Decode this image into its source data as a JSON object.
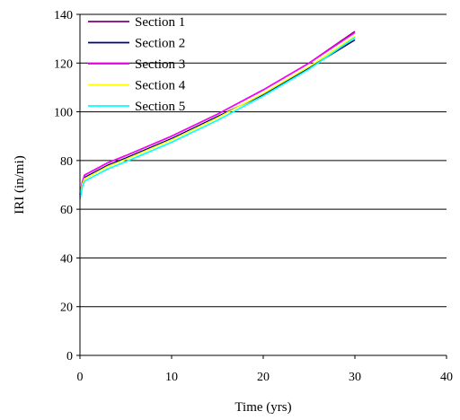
{
  "chart_data": {
    "type": "line",
    "title": "",
    "xlabel": "Time (yrs)",
    "ylabel": "IRI (in/mi)",
    "xlim": [
      0,
      40
    ],
    "ylim": [
      0,
      140
    ],
    "xticks": [
      0,
      10,
      20,
      30,
      40
    ],
    "yticks": [
      0,
      20,
      40,
      60,
      80,
      100,
      120,
      140
    ],
    "xtick_labels": [
      "0",
      "10",
      "20",
      "30",
      "40"
    ],
    "ytick_labels": [
      "0",
      "20",
      "40",
      "60",
      "80",
      "100",
      "120",
      "140"
    ],
    "grid": "horizontal major gridlines",
    "legend_position": "top-left inside plot",
    "series": [
      {
        "name": "Section 1",
        "color": "#800080",
        "x": [
          0,
          0.25,
          0.5,
          1,
          2,
          3,
          5,
          10,
          15,
          20,
          25,
          30
        ],
        "y": [
          66,
          71,
          74,
          75,
          77,
          79,
          82,
          90,
          99,
          109,
          120,
          133
        ]
      },
      {
        "name": "Section 2",
        "color": "#000080",
        "x": [
          0,
          0.25,
          0.5,
          1,
          2,
          3,
          5,
          10,
          15,
          20,
          25,
          30
        ],
        "y": [
          65,
          70,
          73,
          74,
          76,
          78,
          81,
          89,
          98,
          107,
          118,
          129.5
        ]
      },
      {
        "name": "Section 3",
        "color": "#ff00ff",
        "x": [
          0,
          0.25,
          0.5,
          1,
          2,
          3,
          5,
          10,
          15,
          20,
          25,
          30
        ],
        "y": [
          66,
          71,
          74,
          75,
          77,
          79,
          82,
          90,
          99,
          109,
          120,
          132.5
        ]
      },
      {
        "name": "Section 4",
        "color": "#ffff00",
        "x": [
          0,
          0.25,
          0.5,
          1,
          2,
          3,
          5,
          10,
          15,
          20,
          25,
          30
        ],
        "y": [
          65,
          70,
          72.5,
          73.5,
          75.5,
          77.5,
          80.5,
          88.5,
          97.5,
          107.5,
          118.5,
          131
        ]
      },
      {
        "name": "Section 5",
        "color": "#00ffff",
        "x": [
          0,
          0.25,
          0.5,
          1,
          2,
          3,
          5,
          10,
          15,
          20,
          25,
          30
        ],
        "y": [
          64,
          69,
          71.5,
          72.5,
          74.5,
          76.5,
          79.5,
          87.5,
          96.5,
          106.5,
          117.5,
          130.5
        ]
      }
    ]
  }
}
